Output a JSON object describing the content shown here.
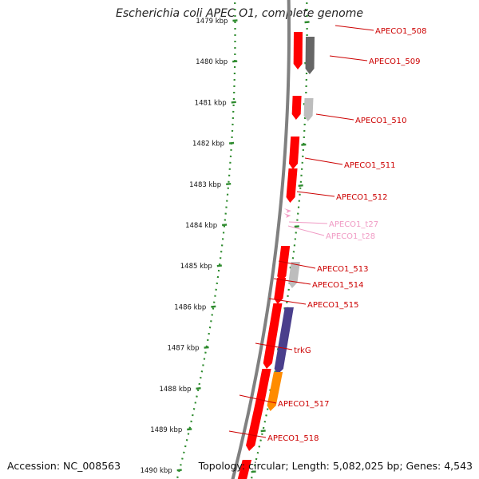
{
  "title": "Escherichia coli APEC O1, complete genome",
  "footer": {
    "accession": "Accession: NC_008563",
    "summary": "Topology: circular; Length: 5,082,025 bp; Genes: 4,543"
  },
  "ticks": {
    "labels": [
      "1479 kbp",
      "1480 kbp",
      "1481 kbp",
      "1482 kbp",
      "1483 kbp",
      "1484 kbp",
      "1485 kbp",
      "1486 kbp",
      "1487 kbp",
      "1488 kbp",
      "1489 kbp",
      "1490 kbp"
    ],
    "axis_color": "#2e8b2e"
  },
  "colors": {
    "backbone": "#808080",
    "cds": "#ff0000",
    "trna": "#f4a0c8",
    "gene_label": "#cc0000",
    "trna_label": "#f09ac4",
    "leader": "#cc0000"
  },
  "genes": [
    {
      "label": "APECO1_508",
      "color": "#ff0000",
      "strand": "reverse"
    },
    {
      "label": "APECO1_509",
      "color": "#666666",
      "strand": "reverse"
    },
    {
      "label": "APECO1_510",
      "color": "#bdbdbd",
      "strand": "reverse"
    },
    {
      "label": "APECO1_511",
      "color": "#ff0000",
      "strand": "reverse"
    },
    {
      "label": "APECO1_512",
      "color": "#ff0000",
      "strand": "reverse"
    },
    {
      "label": "APECO1_t27",
      "color": "#f4a0c8",
      "strand": "reverse"
    },
    {
      "label": "APECO1_t28",
      "color": "#f4a0c8",
      "strand": "reverse"
    },
    {
      "label": "APECO1_513",
      "color": "#ff0000",
      "strand": "reverse"
    },
    {
      "label": "APECO1_514",
      "color": "#bdbdbd",
      "strand": "reverse"
    },
    {
      "label": "APECO1_515",
      "color": "#ff0000",
      "strand": "reverse"
    },
    {
      "label": "trkG",
      "color": "#4a3f8c",
      "strand": "reverse"
    },
    {
      "label": "APECO1_517",
      "color": "#ff8c00",
      "strand": "reverse"
    },
    {
      "label": "APECO1_518",
      "color": "#ff0000",
      "strand": "reverse"
    }
  ]
}
